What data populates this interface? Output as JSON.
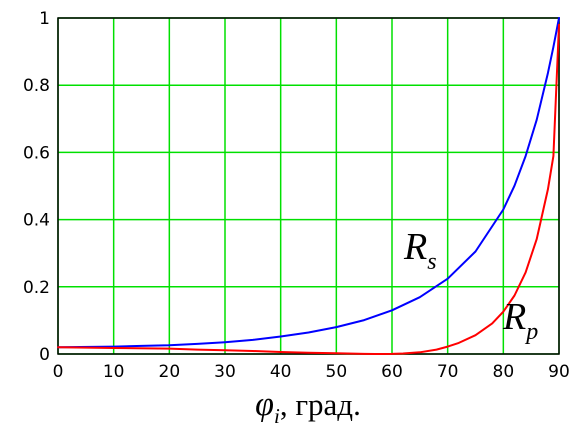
{
  "chart_data": {
    "type": "line",
    "xlabel": {
      "symbol": "φ",
      "subscript": "i",
      "suffix": ", град."
    },
    "xlim": [
      0,
      90
    ],
    "ylim": [
      0,
      1
    ],
    "xticks": [
      0,
      10,
      20,
      30,
      40,
      50,
      60,
      70,
      80,
      90
    ],
    "yticks": [
      0,
      0.2,
      0.4,
      0.6,
      0.8,
      1
    ],
    "grid": true,
    "colors": {
      "grid": "#00e000",
      "axes": "#000000"
    },
    "series": [
      {
        "key": "Rs",
        "label": {
          "main": "R",
          "sub": "s"
        },
        "color": "#0000ff",
        "x": [
          0,
          10,
          15,
          20,
          25,
          30,
          35,
          40,
          45,
          50,
          55,
          60,
          65,
          70,
          75,
          80,
          82,
          84,
          86,
          88,
          89,
          90
        ],
        "y": [
          0.02,
          0.022,
          0.024,
          0.026,
          0.03,
          0.035,
          0.042,
          0.052,
          0.064,
          0.08,
          0.101,
          0.13,
          0.169,
          0.224,
          0.305,
          0.43,
          0.501,
          0.589,
          0.697,
          0.836,
          0.914,
          1.0
        ]
      },
      {
        "key": "Rp",
        "label": {
          "main": "R",
          "sub": "p"
        },
        "color": "#ff0000",
        "x": [
          0,
          10,
          20,
          25,
          30,
          35,
          40,
          45,
          50,
          55,
          57,
          60,
          62,
          65,
          68,
          70,
          72,
          75,
          78,
          80,
          82,
          84,
          86,
          88,
          89,
          90
        ],
        "y": [
          0.02,
          0.018,
          0.016,
          0.013,
          0.011,
          0.009,
          0.006,
          0.004,
          0.002,
          0.0004,
          0.0,
          0.0003,
          0.0014,
          0.005,
          0.013,
          0.022,
          0.033,
          0.056,
          0.091,
          0.126,
          0.174,
          0.243,
          0.342,
          0.49,
          0.589,
          0.98
        ]
      }
    ]
  }
}
